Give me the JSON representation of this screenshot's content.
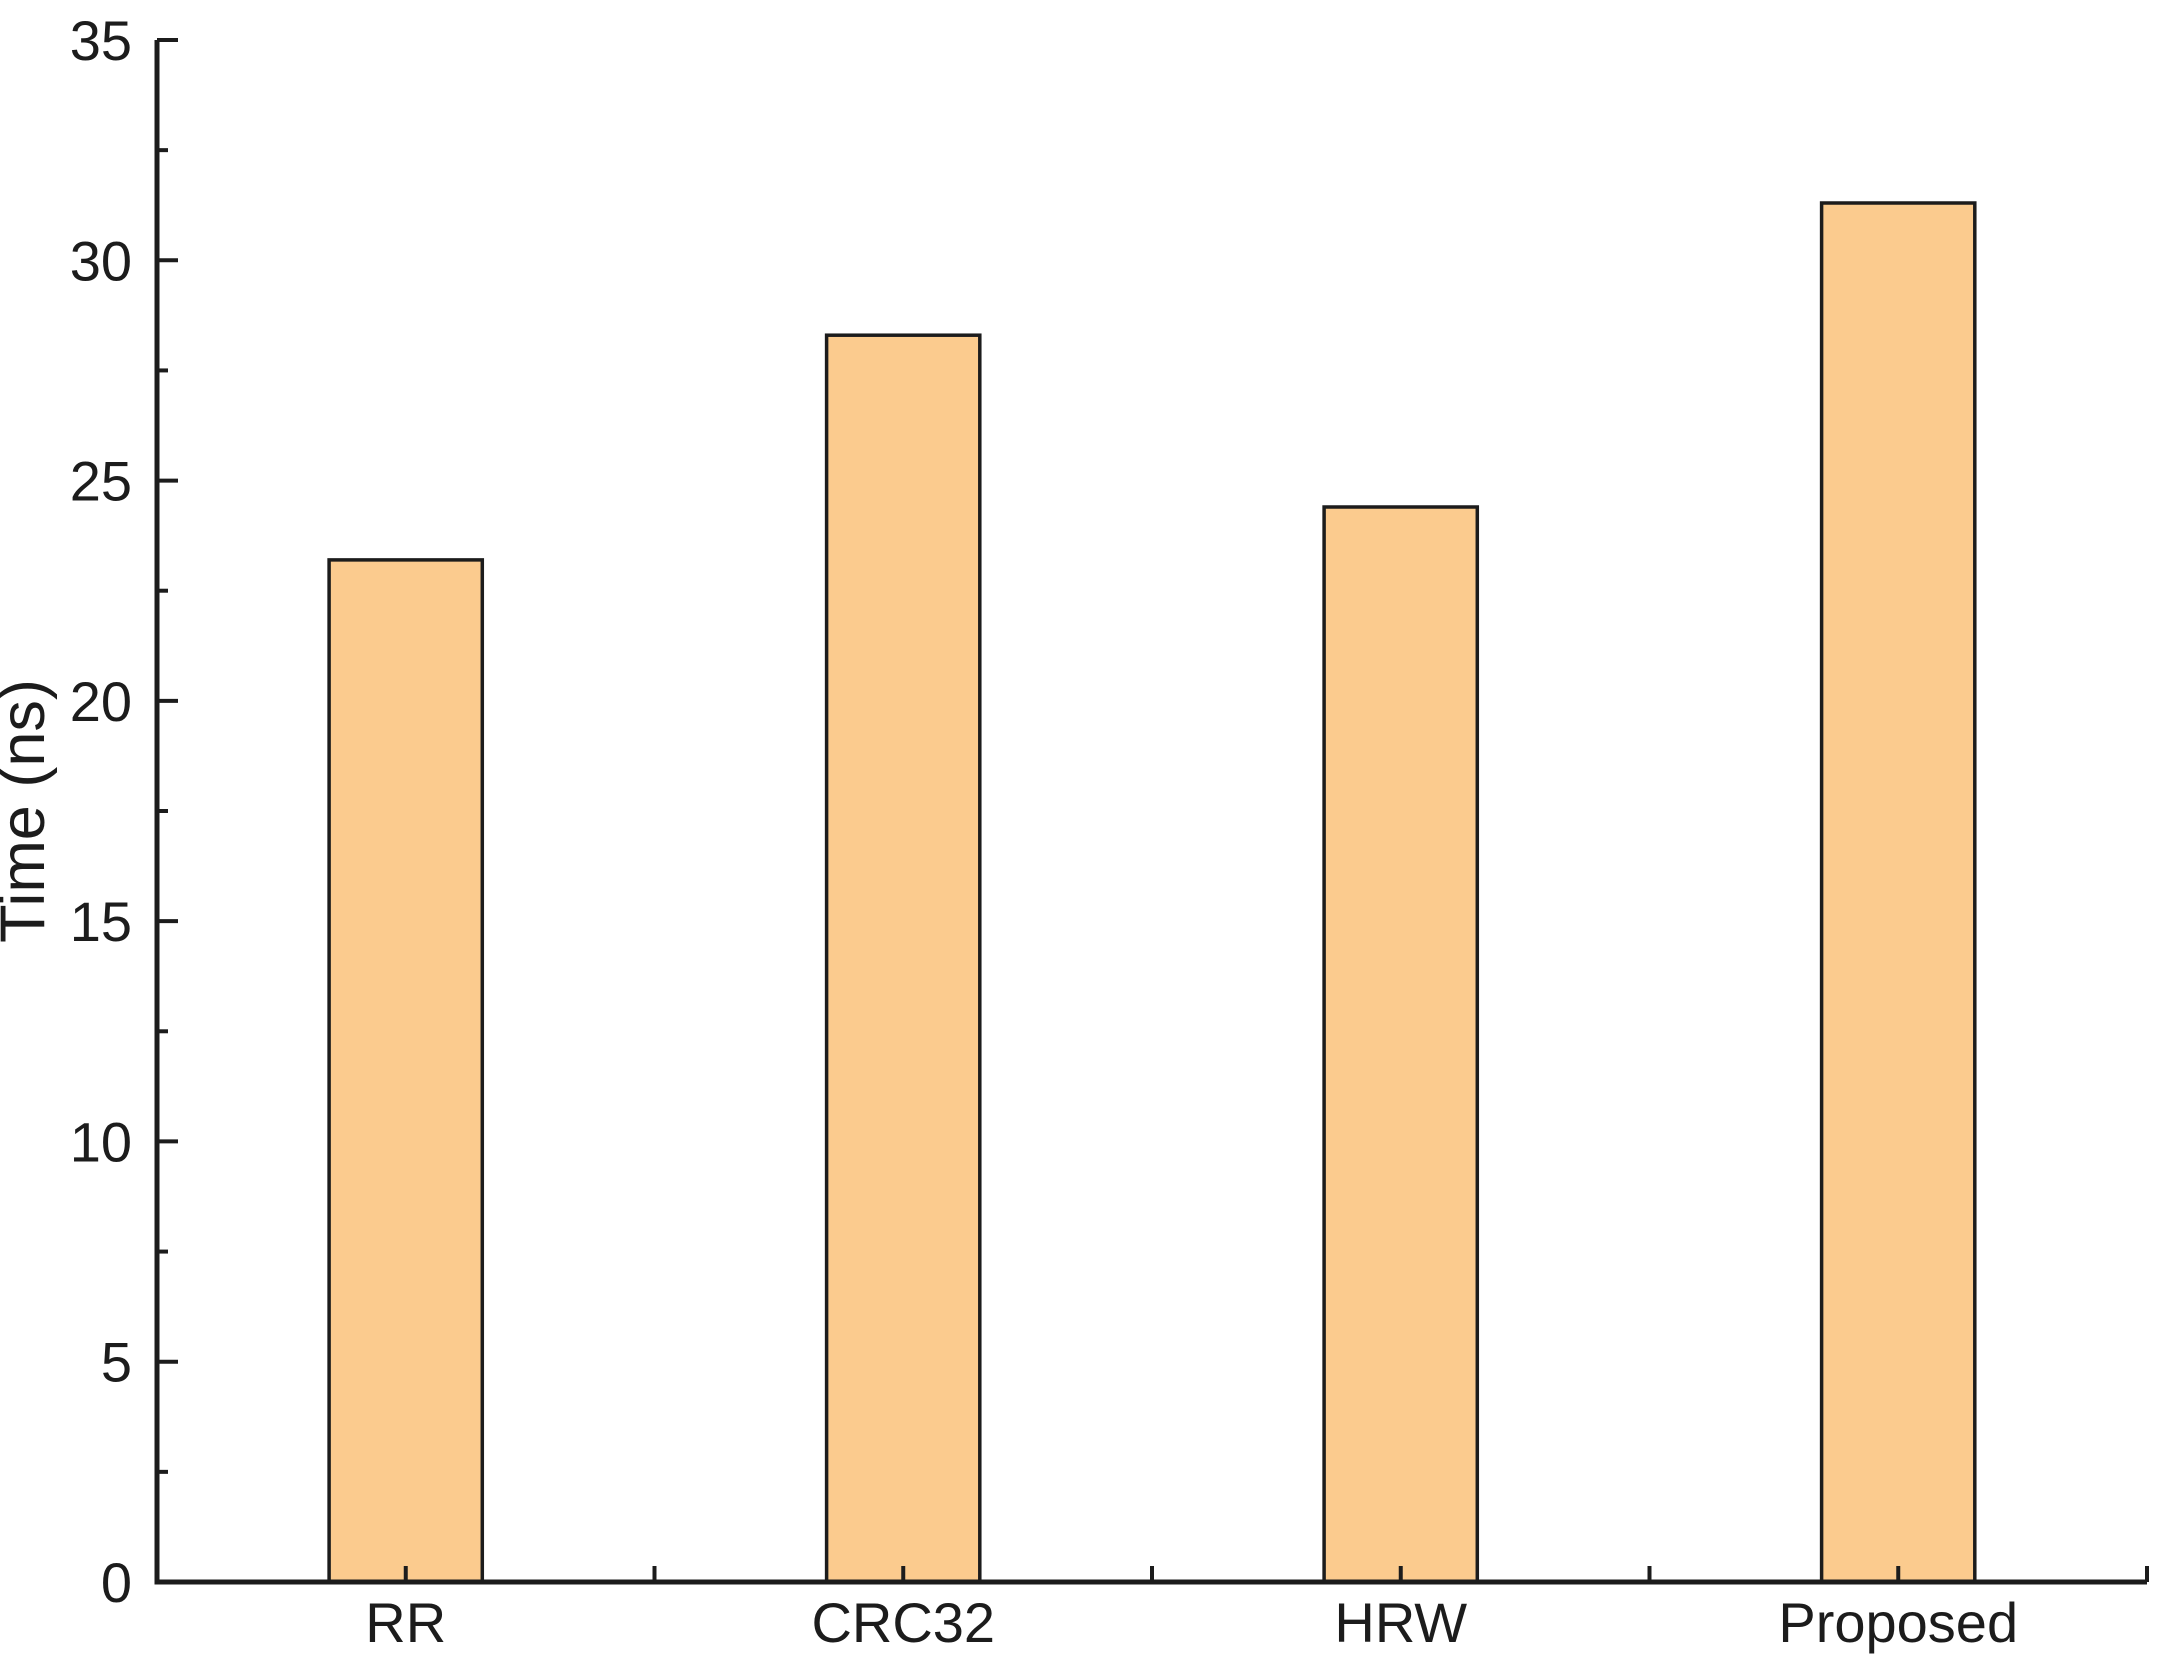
{
  "chart_data": {
    "type": "bar",
    "title": "",
    "categories": [
      "RR",
      "CRC32",
      "HRW",
      "Proposed"
    ],
    "values": [
      23.2,
      28.3,
      24.4,
      31.3
    ],
    "xlabel": "",
    "ylabel": "Time (ns)",
    "ylim": [
      0,
      35
    ],
    "ytick_interval": 5,
    "yminor_tick_interval": 2.5,
    "ytick_labels": [
      "0",
      "5",
      "10",
      "15",
      "20",
      "25",
      "30",
      "35"
    ],
    "grid": false,
    "legend": "none",
    "bar_color": "#FBCB8E",
    "bar_border_color": "#1C1C1C",
    "axis_color": "#1C1C1C",
    "text_color": "#1C1C1C",
    "background_color": "#FFFFFF"
  }
}
